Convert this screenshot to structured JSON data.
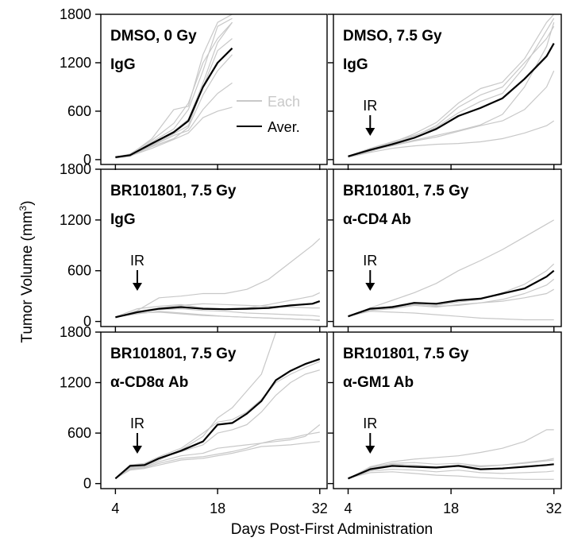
{
  "figure": {
    "ylabel": "Tumor Volume (mm",
    "ylabel_sup": "3",
    "ylabel_close": ")",
    "xlabel": "Days Post-First Administration",
    "colors": {
      "average": "#000000",
      "each": "#c8c8c8"
    }
  },
  "legend": {
    "each_label": "Each",
    "average_label": "Aver."
  },
  "chart_data": [
    {
      "type": "line",
      "panel": "DMSO, 0 Gy IgG",
      "title_lines": [
        "DMSO, 0 Gy",
        "IgG"
      ],
      "ir_label": "",
      "ir_day": null,
      "x_ticks": [
        4,
        18,
        32
      ],
      "y_ticks": [
        0,
        600,
        1200,
        1800
      ],
      "xlim": [
        2,
        33
      ],
      "ylim": [
        -60,
        1800
      ],
      "x": [
        4,
        6,
        9,
        12,
        14,
        16,
        18,
        20
      ],
      "series": [
        {
          "name": "Aver.",
          "values": [
            30,
            55,
            200,
            340,
            480,
            900,
            1200,
            1380
          ]
        },
        {
          "values": [
            25,
            50,
            160,
            260,
            400,
            800,
            1100,
            1300
          ]
        },
        {
          "values": [
            35,
            60,
            260,
            620,
            660,
            1300,
            1700,
            1800
          ]
        },
        {
          "values": [
            28,
            70,
            240,
            450,
            700,
            1200,
            1500,
            1700
          ]
        },
        {
          "values": [
            30,
            45,
            140,
            250,
            330,
            520,
            600,
            650
          ]
        },
        {
          "values": [
            20,
            40,
            180,
            320,
            420,
            900,
            1350,
            1500
          ]
        },
        {
          "values": [
            33,
            58,
            220,
            380,
            620,
            1100,
            1650,
            1750
          ]
        },
        {
          "values": [
            26,
            52,
            170,
            300,
            360,
            620,
            820,
            950
          ]
        },
        {
          "values": [
            31,
            55,
            190,
            350,
            500,
            950,
            1450,
            1700
          ]
        }
      ]
    },
    {
      "type": "line",
      "panel": "DMSO, 7.5 Gy IgG",
      "title_lines": [
        "DMSO, 7.5 Gy",
        "IgG"
      ],
      "ir_label": "IR",
      "ir_day": 7,
      "x_ticks": [
        4,
        18,
        32
      ],
      "y_ticks": [
        0,
        600,
        1200,
        1800
      ],
      "xlim": [
        2,
        33
      ],
      "ylim": [
        -60,
        1800
      ],
      "x": [
        4,
        7,
        10,
        13,
        16,
        19,
        22,
        25,
        28,
        31,
        32
      ],
      "series": [
        {
          "name": "Aver.",
          "values": [
            40,
            120,
            190,
            270,
            380,
            540,
            640,
            760,
            1000,
            1280,
            1440
          ]
        },
        {
          "values": [
            35,
            100,
            180,
            240,
            300,
            360,
            430,
            560,
            900,
            1400,
            1700
          ]
        },
        {
          "values": [
            45,
            130,
            210,
            320,
            460,
            700,
            880,
            960,
            1250,
            1700,
            1800
          ]
        },
        {
          "values": [
            38,
            110,
            170,
            230,
            280,
            350,
            420,
            480,
            620,
            900,
            1100
          ]
        },
        {
          "values": [
            42,
            140,
            220,
            300,
            400,
            580,
            720,
            820,
            1150,
            1600,
            1750
          ]
        },
        {
          "values": [
            30,
            90,
            140,
            170,
            190,
            200,
            220,
            260,
            330,
            420,
            480
          ]
        },
        {
          "values": [
            44,
            125,
            200,
            290,
            420,
            650,
            800,
            900,
            1200,
            1500,
            1650
          ]
        }
      ]
    },
    {
      "type": "line",
      "panel": "BR101801, 7.5 Gy IgG",
      "title_lines": [
        "BR101801, 7.5 Gy",
        "IgG"
      ],
      "ir_label": "IR",
      "ir_day": 7,
      "x_ticks": [
        4,
        18,
        32
      ],
      "y_ticks": [
        0,
        600,
        1200,
        1800
      ],
      "xlim": [
        2,
        33
      ],
      "ylim": [
        -60,
        1800
      ],
      "x": [
        4,
        7,
        10,
        13,
        16,
        19,
        22,
        25,
        28,
        31,
        32
      ],
      "series": [
        {
          "name": "Aver.",
          "values": [
            50,
            110,
            150,
            170,
            150,
            145,
            150,
            160,
            190,
            210,
            240
          ]
        },
        {
          "values": [
            45,
            130,
            280,
            300,
            330,
            330,
            380,
            500,
            700,
            900,
            980
          ]
        },
        {
          "values": [
            55,
            150,
            180,
            200,
            160,
            150,
            160,
            200,
            250,
            300,
            340
          ]
        },
        {
          "values": [
            50,
            90,
            120,
            100,
            80,
            60,
            50,
            40,
            30,
            20,
            10
          ]
        },
        {
          "values": [
            48,
            110,
            140,
            150,
            130,
            120,
            100,
            90,
            80,
            70,
            60
          ]
        },
        {
          "values": [
            52,
            100,
            110,
            90,
            70,
            60,
            50,
            40,
            30,
            20,
            20
          ]
        },
        {
          "values": [
            46,
            120,
            160,
            190,
            210,
            200,
            190,
            180,
            170,
            160,
            160
          ]
        }
      ]
    },
    {
      "type": "line",
      "panel": "BR101801, 7.5 Gy α-CD4 Ab",
      "title_lines": [
        "BR101801, 7.5 Gy",
        "α-CD4 Ab"
      ],
      "ir_label": "IR",
      "ir_day": 7,
      "x_ticks": [
        4,
        18,
        32
      ],
      "y_ticks": [
        0,
        600,
        1200,
        1800
      ],
      "xlim": [
        2,
        33
      ],
      "ylim": [
        -60,
        1800
      ],
      "x": [
        4,
        7,
        10,
        13,
        16,
        19,
        22,
        25,
        28,
        31,
        32
      ],
      "series": [
        {
          "name": "Aver.",
          "values": [
            60,
            150,
            170,
            220,
            210,
            250,
            270,
            330,
            390,
            530,
            600
          ]
        },
        {
          "values": [
            55,
            160,
            250,
            340,
            450,
            600,
            720,
            850,
            1000,
            1150,
            1200
          ]
        },
        {
          "values": [
            65,
            140,
            160,
            200,
            190,
            230,
            260,
            340,
            440,
            600,
            680
          ]
        },
        {
          "values": [
            58,
            130,
            150,
            190,
            170,
            200,
            220,
            260,
            330,
            430,
            500
          ]
        },
        {
          "values": [
            62,
            120,
            110,
            100,
            80,
            60,
            40,
            30,
            20,
            20,
            20
          ]
        },
        {
          "values": [
            56,
            145,
            180,
            210,
            180,
            190,
            220,
            240,
            280,
            330,
            380
          ]
        }
      ]
    },
    {
      "type": "line",
      "panel": "BR101801, 7.5 Gy α-CD8α Ab",
      "title_lines": [
        "BR101801, 7.5 Gy",
        "α-CD8α Ab"
      ],
      "ir_label": "IR",
      "ir_day": 7,
      "x_ticks": [
        4,
        18,
        32
      ],
      "y_ticks": [
        0,
        600,
        1200,
        1800
      ],
      "xlim": [
        2,
        33
      ],
      "ylim": [
        -60,
        1800
      ],
      "x": [
        4,
        6,
        8,
        10,
        13,
        16,
        18,
        20,
        22,
        24,
        26,
        28,
        30,
        32
      ],
      "series": [
        {
          "name": "Aver.",
          "values": [
            60,
            210,
            220,
            300,
            390,
            500,
            700,
            720,
            830,
            980,
            1230,
            1340,
            1420,
            1480
          ]
        },
        {
          "values": [
            55,
            190,
            210,
            280,
            400,
            560,
            780,
            900,
            1100,
            1300,
            1800,
            1800,
            1800,
            1800
          ]
        },
        {
          "values": [
            65,
            220,
            240,
            320,
            420,
            600,
            730,
            760,
            850,
            1000,
            1200,
            1300,
            1380,
            1450
          ]
        },
        {
          "values": [
            58,
            180,
            200,
            260,
            330,
            360,
            420,
            440,
            460,
            480,
            500,
            520,
            560,
            700
          ]
        },
        {
          "values": [
            62,
            160,
            180,
            220,
            280,
            300,
            330,
            360,
            400,
            440,
            450,
            460,
            480,
            500
          ]
        },
        {
          "values": [
            56,
            200,
            230,
            300,
            380,
            460,
            600,
            640,
            700,
            850,
            1050,
            1200,
            1300,
            1350
          ]
        },
        {
          "values": [
            60,
            170,
            190,
            240,
            300,
            320,
            350,
            380,
            420,
            480,
            520,
            540,
            580,
            610
          ]
        }
      ]
    },
    {
      "type": "line",
      "panel": "BR101801, 7.5 Gy α-GM1 Ab",
      "title_lines": [
        "BR101801, 7.5 Gy",
        "α-GM1 Ab"
      ],
      "ir_label": "IR",
      "ir_day": 7,
      "x_ticks": [
        4,
        18,
        32
      ],
      "y_ticks": [
        0,
        600,
        1200,
        1800
      ],
      "xlim": [
        2,
        33
      ],
      "ylim": [
        -60,
        1800
      ],
      "x": [
        4,
        7,
        10,
        13,
        16,
        19,
        22,
        25,
        28,
        31,
        32
      ],
      "series": [
        {
          "name": "Aver.",
          "values": [
            60,
            170,
            210,
            200,
            190,
            210,
            170,
            180,
            200,
            220,
            230
          ]
        },
        {
          "values": [
            55,
            200,
            260,
            290,
            310,
            330,
            370,
            420,
            500,
            640,
            640
          ]
        },
        {
          "values": [
            65,
            180,
            230,
            220,
            200,
            220,
            200,
            220,
            250,
            280,
            300
          ]
        },
        {
          "values": [
            58,
            150,
            170,
            160,
            140,
            160,
            130,
            120,
            130,
            140,
            150
          ]
        },
        {
          "values": [
            62,
            130,
            140,
            120,
            100,
            90,
            70,
            60,
            50,
            50,
            50
          ]
        },
        {
          "values": [
            56,
            190,
            240,
            250,
            230,
            240,
            210,
            220,
            240,
            270,
            280
          ]
        }
      ]
    }
  ]
}
